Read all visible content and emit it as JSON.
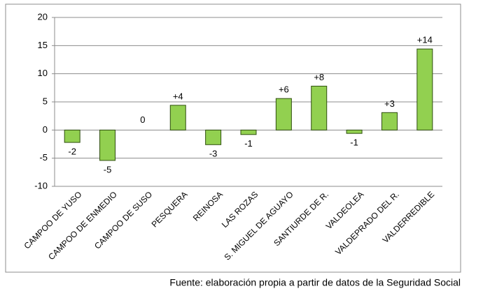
{
  "chart_data": {
    "type": "bar",
    "categories": [
      "CAMPOO DE YUSO",
      "CAMPOO DE ENMEDIO",
      "CAMPOO DE SUSO",
      "PESQUERA",
      "REINOSA",
      "LAS ROZAS",
      "S. MIGUEL DE AGUAYO",
      "SANTIURDE DE R.",
      "VALDEOLEA",
      "VALDEPRADO DEL R.",
      "VALDERREDIBLE"
    ],
    "values": [
      -2.2,
      -5.4,
      0,
      4.4,
      -2.6,
      -0.8,
      5.6,
      7.8,
      -0.6,
      3.1,
      14.4
    ],
    "value_labels": [
      "-2",
      "-5",
      "0",
      "+4",
      "-3",
      "-1",
      "+6",
      "+8",
      "-1",
      "+3",
      "+14"
    ],
    "color": "#92d050",
    "ylim": [
      -10,
      20
    ],
    "yticks": [
      -10,
      -5,
      0,
      5,
      10,
      15,
      20
    ],
    "grid": true,
    "source": "Fuente: elaboración propia a partir de datos de la Seguridad Social"
  }
}
